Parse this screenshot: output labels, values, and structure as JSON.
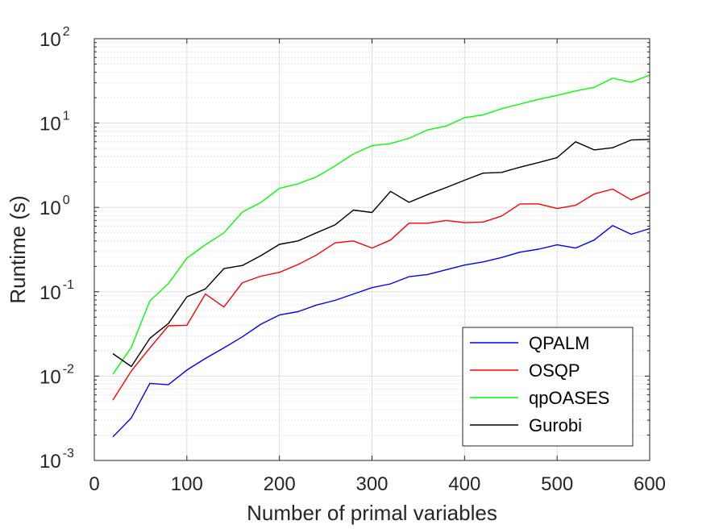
{
  "chart_data": {
    "type": "line",
    "xlabel": "Number of primal variables",
    "ylabel": "Runtime (s)",
    "xlim": [
      0,
      600
    ],
    "ylim": [
      0.001,
      100
    ],
    "yscale": "log",
    "grid": true,
    "minor_grid": true,
    "legend_position": "bottom-right",
    "xticks": [
      0,
      100,
      200,
      300,
      400,
      500,
      600
    ],
    "yticks": [
      {
        "base": "10",
        "exp": "-3"
      },
      {
        "base": "10",
        "exp": "-2"
      },
      {
        "base": "10",
        "exp": "-1"
      },
      {
        "base": "10",
        "exp": "0"
      },
      {
        "base": "10",
        "exp": "1"
      },
      {
        "base": "10",
        "exp": "2"
      }
    ],
    "x": [
      20,
      40,
      60,
      80,
      100,
      120,
      140,
      160,
      180,
      200,
      220,
      240,
      260,
      280,
      300,
      320,
      340,
      360,
      380,
      400,
      420,
      440,
      460,
      480,
      500,
      520,
      540,
      560,
      580,
      600
    ],
    "series": [
      {
        "name": "QPALM",
        "color": "#0000ff",
        "values": [
          0.0019,
          0.0032,
          0.0082,
          0.0079,
          0.0118,
          0.0162,
          0.0216,
          0.0292,
          0.0413,
          0.053,
          0.058,
          0.0695,
          0.079,
          0.094,
          0.112,
          0.124,
          0.151,
          0.16,
          0.182,
          0.207,
          0.226,
          0.255,
          0.295,
          0.32,
          0.36,
          0.33,
          0.41,
          0.61,
          0.48,
          0.56
        ]
      },
      {
        "name": "OSQP",
        "color": "#ff0000",
        "values": [
          0.0052,
          0.0115,
          0.0215,
          0.0395,
          0.04,
          0.094,
          0.066,
          0.128,
          0.153,
          0.17,
          0.21,
          0.272,
          0.38,
          0.4,
          0.33,
          0.41,
          0.65,
          0.65,
          0.7,
          0.66,
          0.67,
          0.79,
          1.1,
          1.1,
          0.97,
          1.06,
          1.44,
          1.65,
          1.23,
          1.52
        ]
      },
      {
        "name": "qpOASES",
        "color": "#00ff00",
        "values": [
          0.0105,
          0.022,
          0.078,
          0.125,
          0.25,
          0.36,
          0.5,
          0.88,
          1.15,
          1.68,
          1.9,
          2.3,
          3.1,
          4.3,
          5.4,
          5.7,
          6.6,
          8.3,
          9.2,
          11.6,
          12.5,
          14.8,
          16.8,
          19.1,
          21.3,
          24.0,
          26.5,
          34.0,
          30.5,
          37.0
        ]
      },
      {
        "name": "Gurobi",
        "color": "#000000",
        "values": [
          0.0185,
          0.013,
          0.028,
          0.042,
          0.087,
          0.108,
          0.188,
          0.205,
          0.268,
          0.365,
          0.4,
          0.5,
          0.62,
          0.93,
          0.87,
          1.55,
          1.15,
          1.42,
          1.72,
          2.1,
          2.55,
          2.6,
          3.0,
          3.4,
          3.9,
          6.0,
          4.8,
          5.1,
          6.3,
          6.4
        ]
      }
    ]
  }
}
